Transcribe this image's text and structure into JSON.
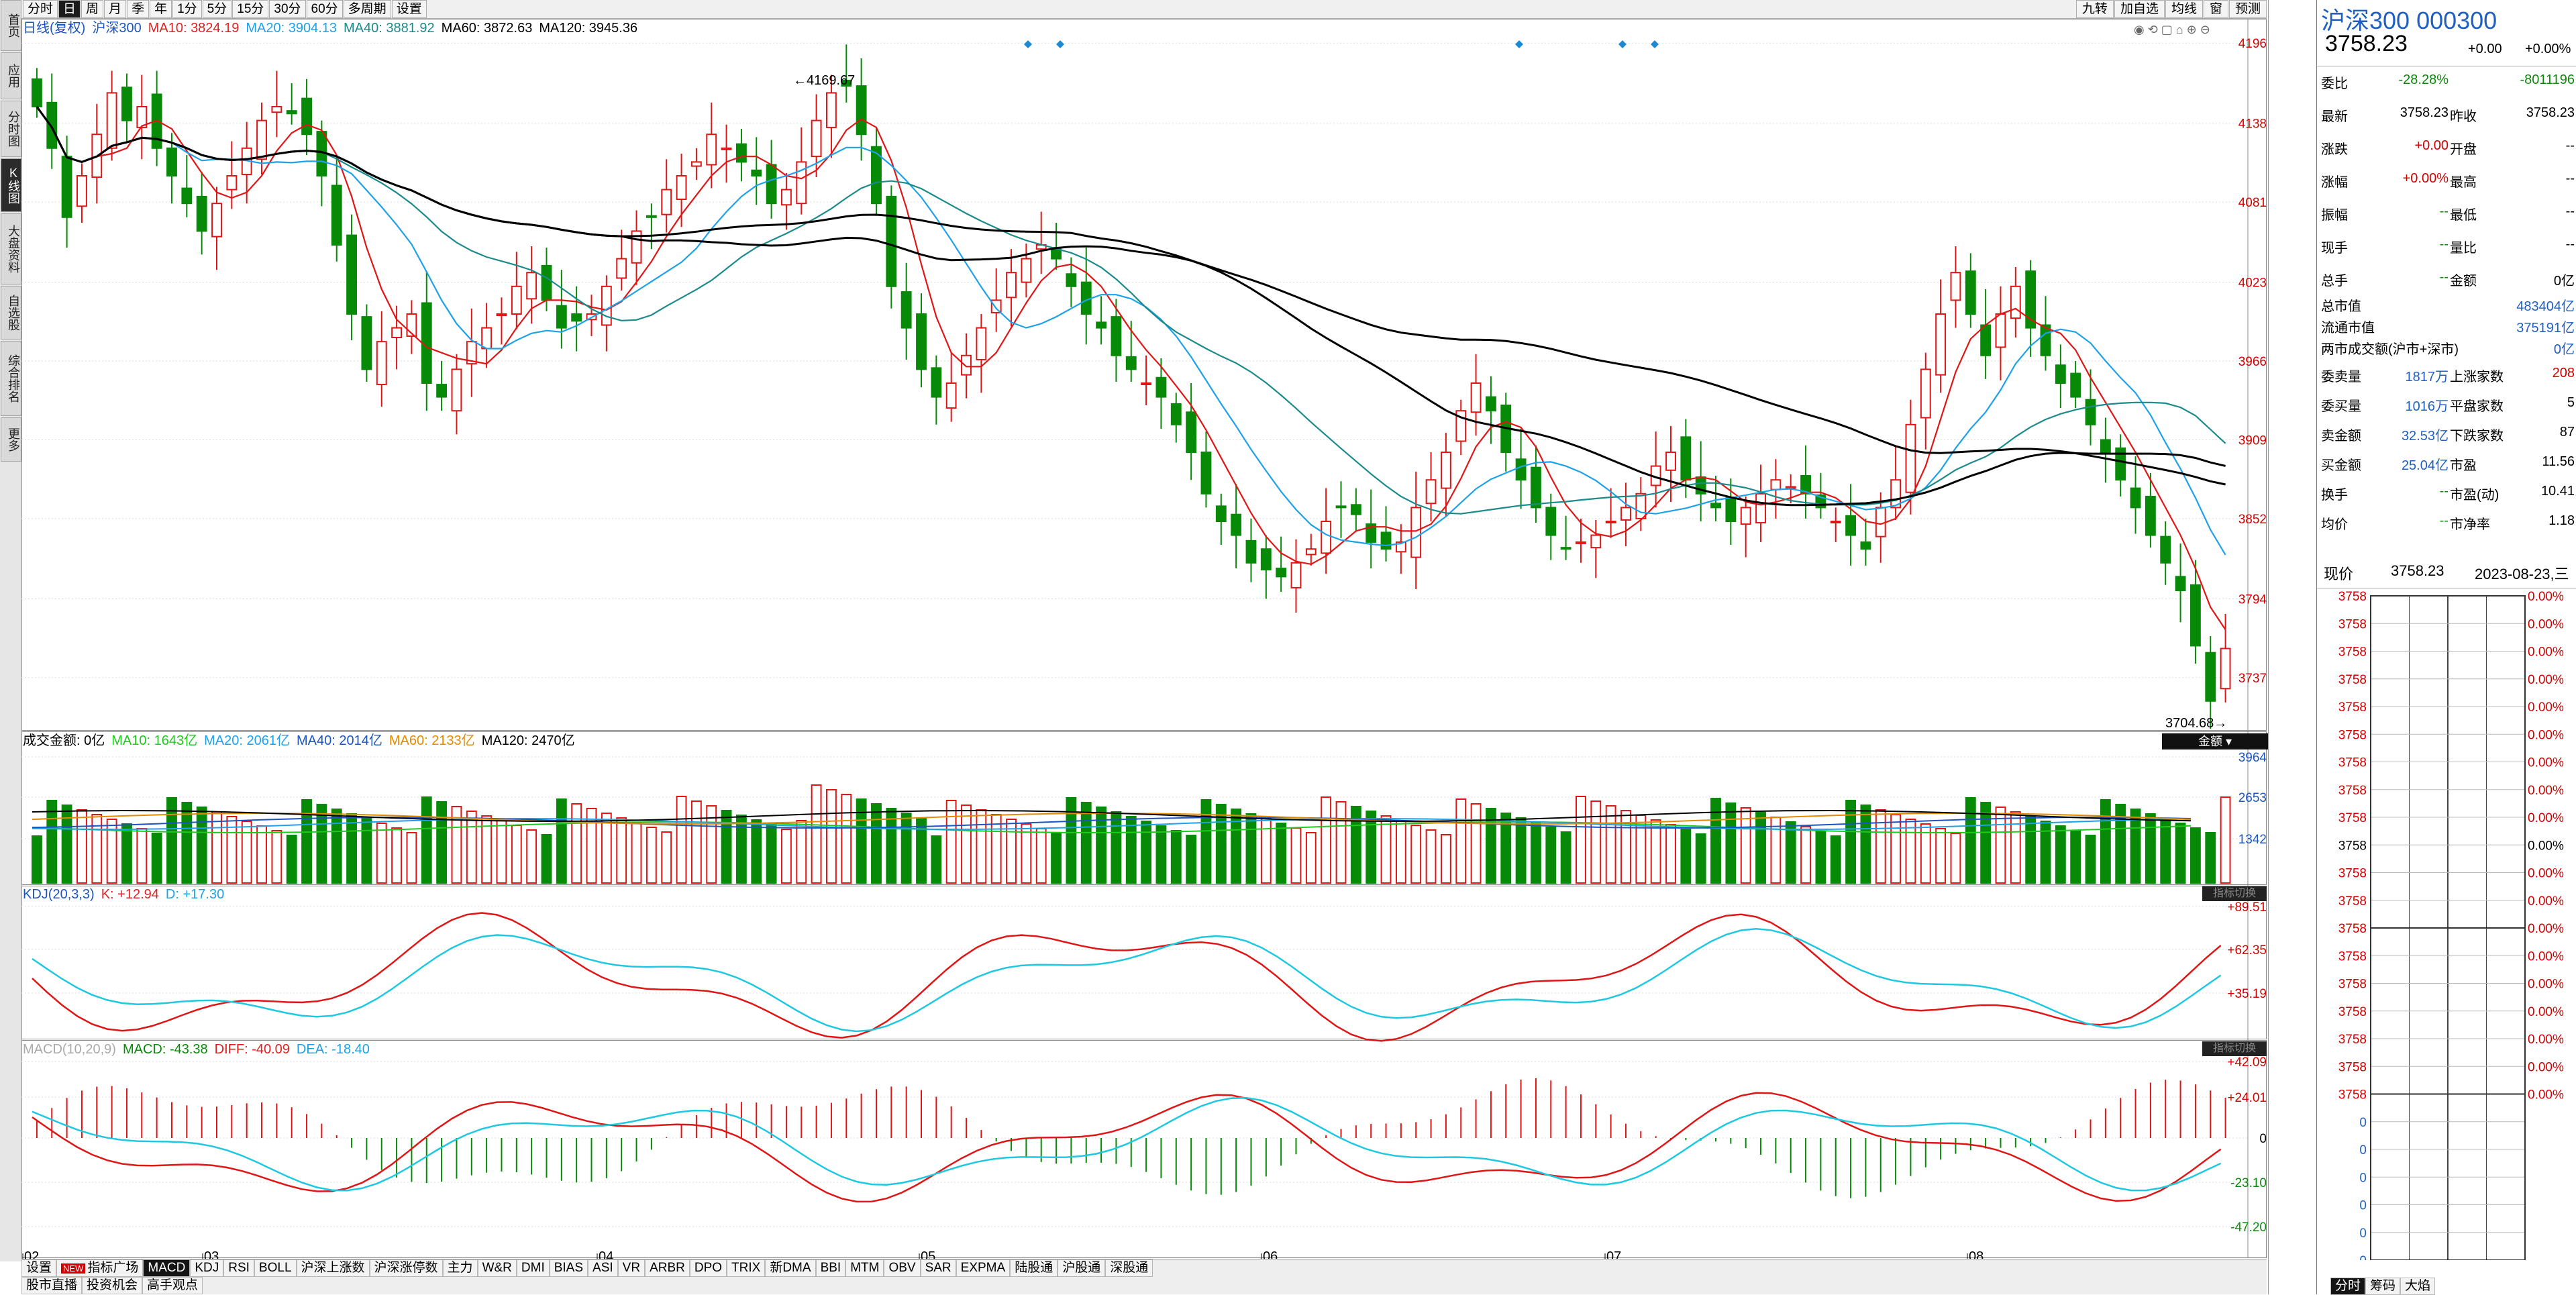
{
  "sidebar": {
    "items": [
      {
        "label": "首页",
        "active": false
      },
      {
        "label": "应用",
        "active": false
      },
      {
        "label": "分时图",
        "active": false
      },
      {
        "label": "K线图",
        "active": true
      },
      {
        "label": "大盘资料",
        "active": false
      },
      {
        "label": "自选股",
        "active": false
      },
      {
        "label": "综合排名",
        "active": false
      },
      {
        "label": "更多",
        "active": false
      }
    ]
  },
  "toolbar": {
    "periods": [
      "分时",
      "日",
      "周",
      "月",
      "季",
      "年",
      "1分",
      "5分",
      "15分",
      "30分",
      "60分",
      "多周期",
      "设置"
    ],
    "active_period": "日",
    "right_buttons": [
      "九转",
      "加自选",
      "均线",
      "窗",
      "预测"
    ]
  },
  "legend": {
    "main": "日线(复权)",
    "name": "沪深300",
    "ma10": "MA10: 3824.19",
    "ma20": "MA20: 3904.13",
    "ma40": "MA40: 3881.92",
    "ma60": "MA60: 3872.63",
    "ma120": "MA120: 3945.36",
    "volume": "成交金额: 0亿",
    "vma10": "MA10: 1643亿",
    "vma20": "MA20: 2061亿",
    "vma40": "MA40: 2014亿",
    "vma60": "MA60: 2133亿",
    "vma120": "MA120: 2470亿",
    "kdj": "KDJ(20,3,3)",
    "kdj_k": "K: +12.94",
    "kdj_d": "D: +17.30",
    "macd": "MACD(10,20,9)",
    "macd_v": "MACD: -43.38",
    "macd_diff": "DIFF: -40.09",
    "macd_dea": "DEA: -18.40",
    "amount_btn": "金额",
    "indicator_btn": "指标切换"
  },
  "chart_data": {
    "type": "candlestick",
    "price_axis_labels": [
      "4196",
      "4138",
      "4081",
      "4023",
      "3966",
      "3909",
      "3852",
      "3794",
      "3737"
    ],
    "volume_axis_labels": [
      "3964",
      "2653",
      "1342"
    ],
    "kdj_axis_labels": [
      "+89.51",
      "+62.35",
      "+35.19"
    ],
    "macd_axis_labels": [
      "+42.09",
      "+24.01",
      "0",
      "-23.10",
      "-47.20"
    ],
    "x_labels": [
      "02",
      "03",
      "04",
      "05",
      "06",
      "07",
      "08"
    ],
    "annotations": {
      "high": "4169.67",
      "low": "3704.68"
    },
    "ylim": [
      3700,
      4200
    ]
  },
  "bottom": {
    "tabs": [
      "设置",
      "指标广场",
      "MACD",
      "KDJ",
      "RSI",
      "BOLL",
      "沪深上涨数",
      "沪深涨停数",
      "主力",
      "W&R",
      "DMI",
      "BIAS",
      "ASI",
      "VR",
      "ARBR",
      "DPO",
      "TRIX",
      "新DMA",
      "BBI",
      "MTM",
      "OBV",
      "SAR",
      "EXPMA",
      "陆股通",
      "沪股通",
      "深股通"
    ],
    "active_tab": "MACD",
    "new_badge": "NEW",
    "tabs2": [
      "股市直播",
      "投资机会",
      "高手观点"
    ]
  },
  "quote": {
    "title": "沪深300 000300",
    "price": "3758.23",
    "change": "+0.00",
    "change_pct": "+0.00%",
    "rows": [
      [
        "委比",
        "-28.28%",
        "",
        "-8011196"
      ],
      [
        "最新",
        "3758.23",
        "昨收",
        "3758.23"
      ],
      [
        "涨跌",
        "+0.00",
        "开盘",
        "--"
      ],
      [
        "涨幅",
        "+0.00%",
        "最高",
        "--"
      ],
      [
        "振幅",
        "--",
        "最低",
        "--"
      ],
      [
        "现手",
        "--",
        "量比",
        "--"
      ],
      [
        "总手",
        "--",
        "金额",
        "0亿"
      ]
    ],
    "rows2": [
      [
        "总市值",
        "",
        "",
        "483404亿"
      ],
      [
        "流通市值",
        "",
        "",
        "375191亿"
      ],
      [
        "两市成交额(沪市+深市)",
        "",
        "",
        "0亿"
      ]
    ],
    "rows3": [
      [
        "委卖量",
        "1817万",
        "上涨家数",
        "208"
      ],
      [
        "委买量",
        "1016万",
        "平盘家数",
        "5"
      ],
      [
        "卖金额",
        "32.53亿",
        "下跌家数",
        "87"
      ],
      [
        "买金额",
        "25.04亿",
        "市盈",
        "11.56"
      ],
      [
        "换手",
        "--",
        "市盈(动)",
        "10.41"
      ],
      [
        "均价",
        "--",
        "市净率",
        "1.18"
      ]
    ],
    "now_label": "现价",
    "now_price": "3758.23",
    "now_date": "2023-08-23,三",
    "grid_price": "3758",
    "grid_pct": "0.00%",
    "grid_zero": "0",
    "tabs": [
      "分时",
      "筹码",
      "大焰"
    ]
  }
}
